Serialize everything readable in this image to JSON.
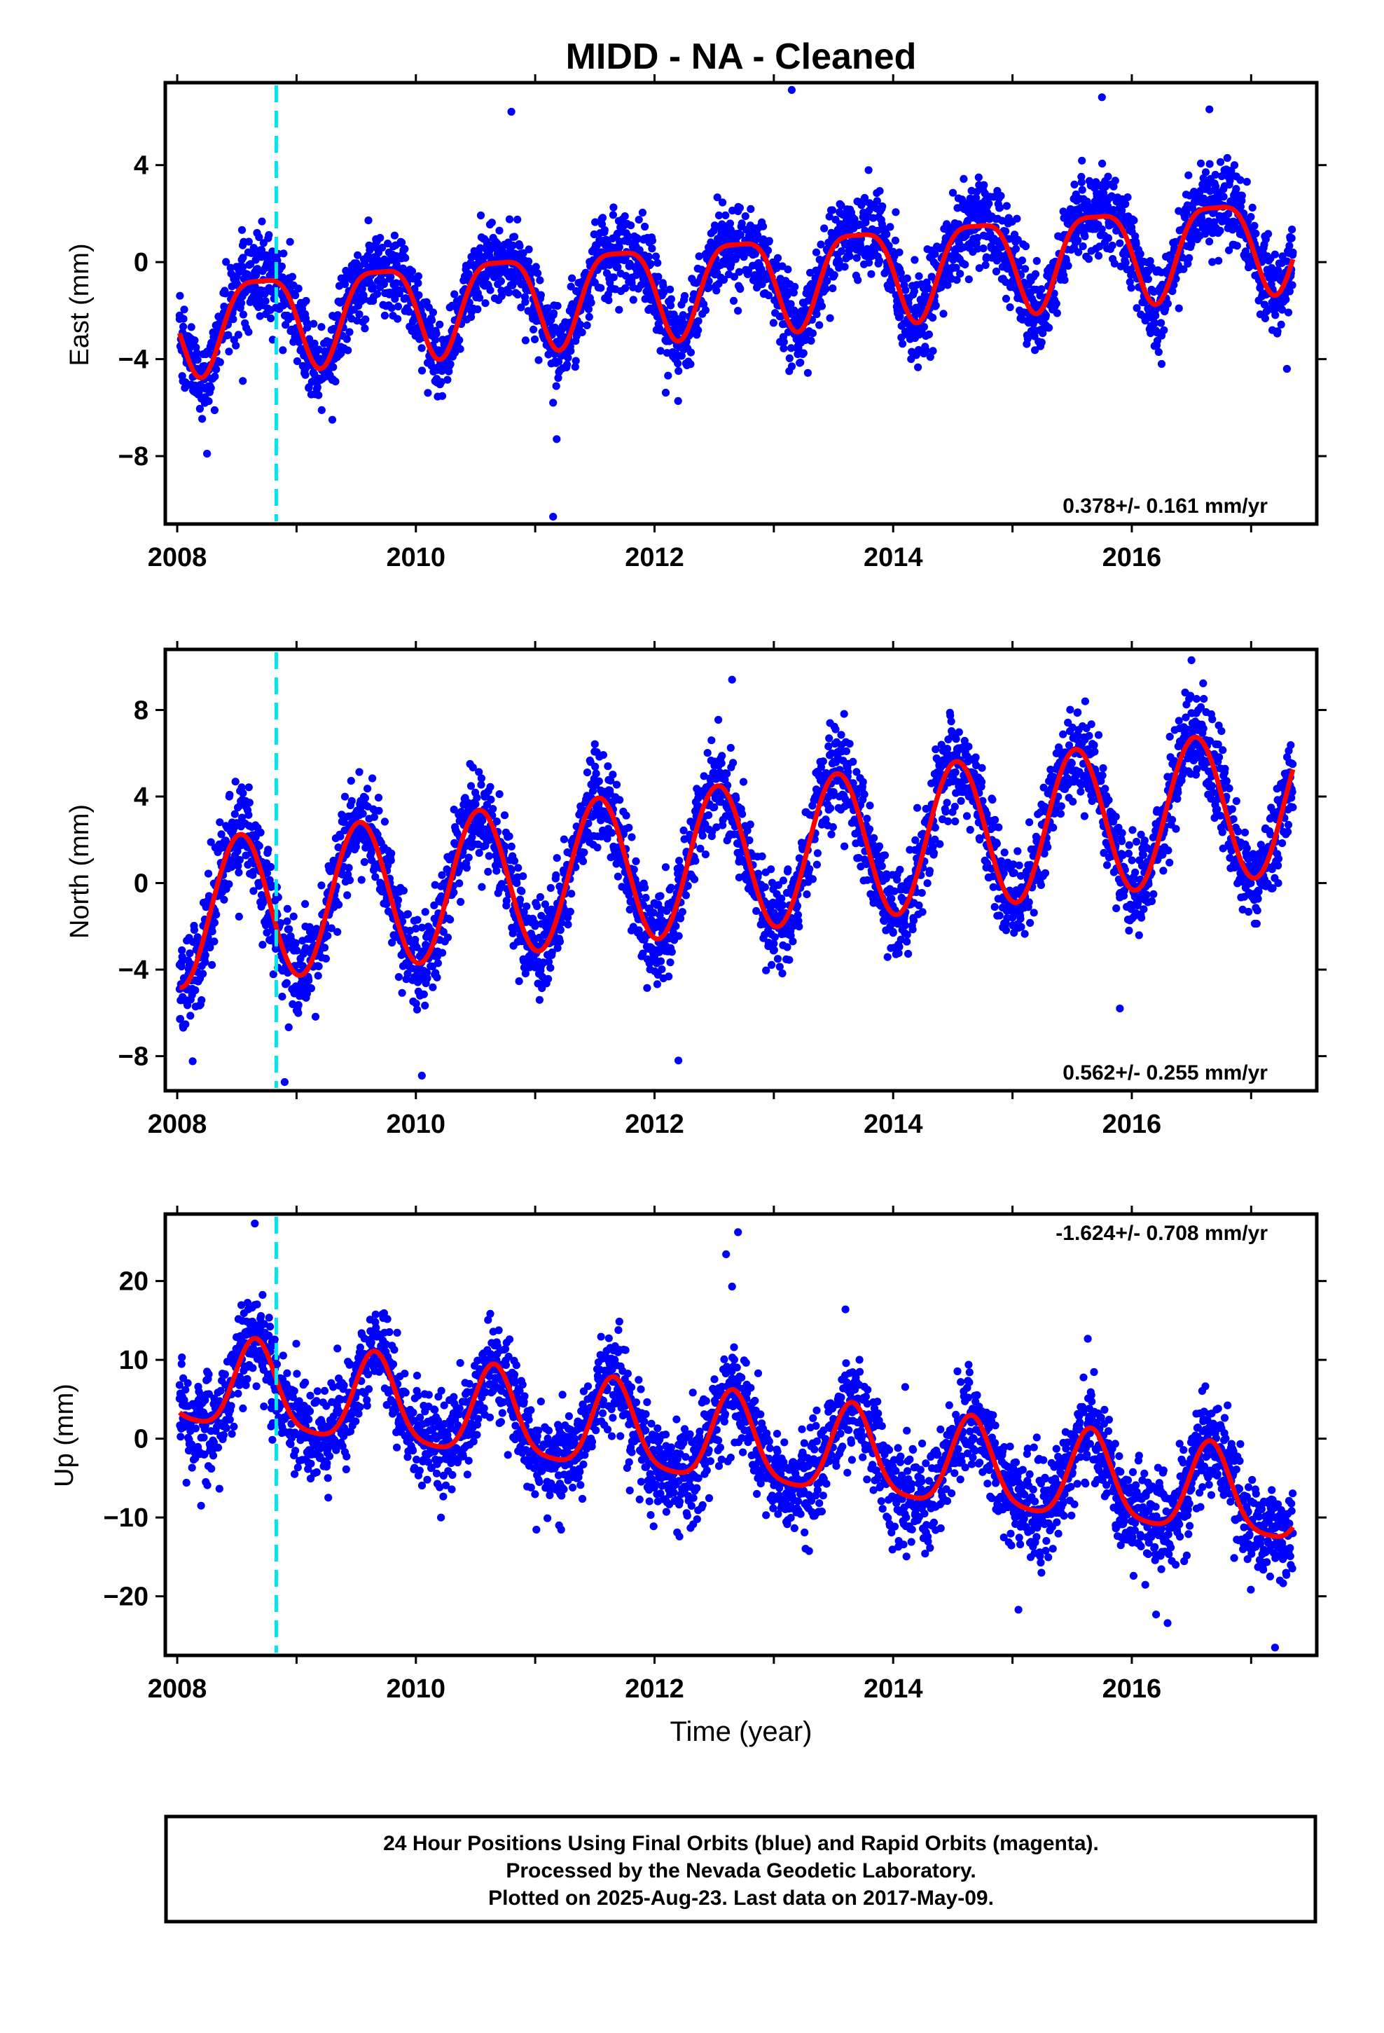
{
  "figure": {
    "title": "MIDD  - NA - Cleaned",
    "xlabel": "Time (year)",
    "footer": [
      "24 Hour Positions Using Final Orbits (blue) and Rapid Orbits (magenta).",
      "Processed by the Nevada Geodetic Laboratory.",
      "Plotted on 2025-Aug-23. Last data on 2017-May-09."
    ],
    "colors": {
      "points": "#0000ff",
      "model": "#ff0000",
      "event_line": "#00e5ee",
      "frame": "#000000"
    }
  },
  "chart_data": [
    {
      "type": "scatter",
      "panel": "east",
      "ylabel": "East (mm)",
      "rate_text": "0.378+/- 0.161 mm/yr",
      "rate_position": "bottom-right",
      "xlim": [
        2007.9,
        2017.55
      ],
      "ylim": [
        -10.8,
        7.4
      ],
      "xticks": [
        2008,
        2010,
        2012,
        2014,
        2016
      ],
      "yticks": [
        -8,
        -4,
        0,
        4
      ],
      "event_line_x": 2008.83,
      "model": {
        "offset": -2.45,
        "rate": 0.378,
        "annual_amp": 1.9,
        "annual_peak": 0.7,
        "semiannual_amp": 0.5,
        "semiannual_peak": 0.95
      },
      "data_range": [
        2008.02,
        2017.35
      ],
      "noise_sd": 0.85,
      "samples": [
        {
          "x": 2008.02,
          "y": -2.2
        },
        {
          "x": 2008.3,
          "y": -2.9
        },
        {
          "x": 2008.55,
          "y": -0.2
        },
        {
          "x": 2008.7,
          "y": 0.5
        },
        {
          "x": 2009.0,
          "y": -1.9
        },
        {
          "x": 2009.5,
          "y": -1.4
        },
        {
          "x": 2009.7,
          "y": 1.0
        },
        {
          "x": 2010.0,
          "y": -1.5
        },
        {
          "x": 2010.7,
          "y": 1.3
        },
        {
          "x": 2011.0,
          "y": -1.2
        },
        {
          "x": 2011.7,
          "y": 1.7
        },
        {
          "x": 2012.0,
          "y": -0.6
        },
        {
          "x": 2012.7,
          "y": 2.1
        },
        {
          "x": 2013.0,
          "y": -0.3
        },
        {
          "x": 2013.7,
          "y": 2.5
        },
        {
          "x": 2014.0,
          "y": 0.1
        },
        {
          "x": 2014.7,
          "y": 2.9
        },
        {
          "x": 2015.0,
          "y": 0.4
        },
        {
          "x": 2015.7,
          "y": 3.3
        },
        {
          "x": 2016.0,
          "y": 0.8
        },
        {
          "x": 2016.7,
          "y": 3.6
        },
        {
          "x": 2017.35,
          "y": 0.4
        }
      ],
      "outliers": [
        {
          "x": 2008.25,
          "y": -7.9
        },
        {
          "x": 2009.3,
          "y": -6.5
        },
        {
          "x": 2011.15,
          "y": -5.8
        },
        {
          "x": 2011.18,
          "y": -7.3
        },
        {
          "x": 2011.15,
          "y": -10.5
        },
        {
          "x": 2013.15,
          "y": 7.1
        },
        {
          "x": 2010.8,
          "y": 6.2
        },
        {
          "x": 2015.75,
          "y": 6.8
        },
        {
          "x": 2016.65,
          "y": 6.3
        },
        {
          "x": 2014.15,
          "y": -4.0
        },
        {
          "x": 2016.25,
          "y": -4.2
        },
        {
          "x": 2017.3,
          "y": -4.4
        },
        {
          "x": 2008.55,
          "y": -4.9
        }
      ]
    },
    {
      "type": "scatter",
      "panel": "north",
      "ylabel": "North (mm)",
      "rate_text": "0.562+/- 0.255 mm/yr",
      "rate_position": "bottom-right",
      "xlim": [
        2007.9,
        2017.55
      ],
      "ylim": [
        -9.6,
        10.8
      ],
      "xticks": [
        2008,
        2010,
        2012,
        2014,
        2016
      ],
      "yticks": [
        -8,
        -4,
        0,
        4,
        8
      ],
      "event_line_x": 2008.83,
      "model": {
        "offset": -1.45,
        "rate": 0.562,
        "annual_amp": 3.4,
        "annual_peak": 0.53,
        "semiannual_amp": 0.0,
        "semiannual_peak": 0.0
      },
      "data_range": [
        2008.02,
        2017.35
      ],
      "noise_sd": 1.05,
      "samples": [
        {
          "x": 2008.02,
          "y": -4.9
        },
        {
          "x": 2008.5,
          "y": 1.9
        },
        {
          "x": 2009.0,
          "y": -5.0
        },
        {
          "x": 2009.5,
          "y": 1.9
        },
        {
          "x": 2010.0,
          "y": -4.4
        },
        {
          "x": 2010.5,
          "y": 2.4
        },
        {
          "x": 2011.0,
          "y": -3.9
        },
        {
          "x": 2011.55,
          "y": 2.9
        },
        {
          "x": 2012.0,
          "y": -3.4
        },
        {
          "x": 2012.5,
          "y": 3.5
        },
        {
          "x": 2013.0,
          "y": -2.8
        },
        {
          "x": 2013.55,
          "y": 4.0
        },
        {
          "x": 2014.0,
          "y": -2.3
        },
        {
          "x": 2014.5,
          "y": 4.7
        },
        {
          "x": 2015.0,
          "y": -1.6
        },
        {
          "x": 2015.5,
          "y": 5.2
        },
        {
          "x": 2016.0,
          "y": -1.1
        },
        {
          "x": 2016.55,
          "y": 5.8
        },
        {
          "x": 2017.0,
          "y": -0.5
        },
        {
          "x": 2017.35,
          "y": 3.5
        }
      ],
      "outliers": [
        {
          "x": 2012.65,
          "y": 9.4
        },
        {
          "x": 2016.5,
          "y": 10.3
        },
        {
          "x": 2008.9,
          "y": -9.2
        },
        {
          "x": 2010.05,
          "y": -8.9
        },
        {
          "x": 2012.2,
          "y": -8.2
        },
        {
          "x": 2015.9,
          "y": -5.8
        }
      ]
    },
    {
      "type": "scatter",
      "panel": "up",
      "ylabel": "Up (mm)",
      "rate_text": "-1.624+/- 0.708 mm/yr",
      "rate_position": "top-right",
      "xlim": [
        2007.9,
        2017.55
      ],
      "ylim": [
        -27.5,
        28.5
      ],
      "xticks": [
        2008,
        2010,
        2012,
        2014,
        2016
      ],
      "yticks": [
        -20,
        -10,
        0,
        10,
        20
      ],
      "event_line_x": 2008.83,
      "model": {
        "offset": 7.0,
        "rate": -1.624,
        "annual_amp": 5.6,
        "annual_peak": 0.66,
        "semiannual_amp": 1.2,
        "semiannual_peak": 0.15
      },
      "data_range": [
        2008.02,
        2017.35
      ],
      "noise_sd": 3.1,
      "samples": [
        {
          "x": 2008.02,
          "y": 6.8
        },
        {
          "x": 2008.3,
          "y": 2.5
        },
        {
          "x": 2008.65,
          "y": 13.3
        },
        {
          "x": 2009.25,
          "y": -0.2
        },
        {
          "x": 2009.65,
          "y": 10.6
        },
        {
          "x": 2010.25,
          "y": -1.8
        },
        {
          "x": 2010.65,
          "y": 9.0
        },
        {
          "x": 2011.25,
          "y": -3.4
        },
        {
          "x": 2011.65,
          "y": 7.2
        },
        {
          "x": 2012.25,
          "y": -5.0
        },
        {
          "x": 2012.65,
          "y": 5.6
        },
        {
          "x": 2013.25,
          "y": -6.6
        },
        {
          "x": 2013.65,
          "y": 4.0
        },
        {
          "x": 2014.25,
          "y": -8.2
        },
        {
          "x": 2014.65,
          "y": 2.4
        },
        {
          "x": 2015.25,
          "y": -9.9
        },
        {
          "x": 2015.65,
          "y": 0.7
        },
        {
          "x": 2016.25,
          "y": -11.4
        },
        {
          "x": 2016.65,
          "y": -0.9
        },
        {
          "x": 2017.35,
          "y": -12.0
        }
      ],
      "outliers": [
        {
          "x": 2008.65,
          "y": 27.3
        },
        {
          "x": 2012.7,
          "y": 26.2
        },
        {
          "x": 2012.6,
          "y": 23.4
        },
        {
          "x": 2012.65,
          "y": 19.3
        },
        {
          "x": 2016.3,
          "y": -23.4
        },
        {
          "x": 2017.2,
          "y": -26.5
        },
        {
          "x": 2015.05,
          "y": -21.7
        },
        {
          "x": 2008.2,
          "y": -8.5
        },
        {
          "x": 2011.2,
          "y": -11.0
        },
        {
          "x": 2013.6,
          "y": 16.4
        }
      ]
    }
  ]
}
